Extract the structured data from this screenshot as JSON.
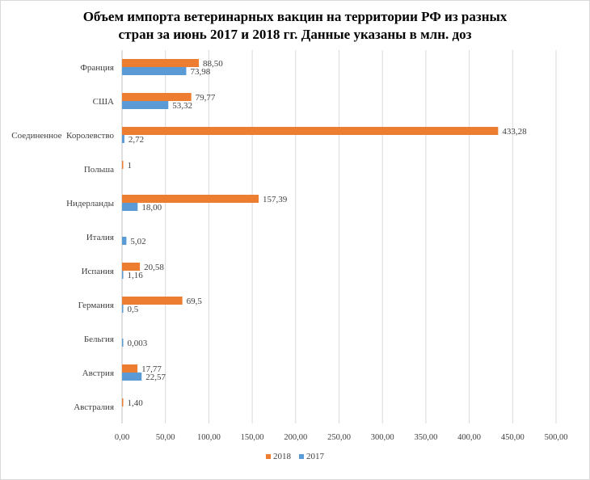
{
  "chart_data": {
    "type": "bar",
    "orientation": "horizontal",
    "title_lines": [
      "Объем импорта ветеринарных вакцин на территории РФ из разных",
      "стран за июнь 2017 и 2018 гг. Данные указаны в млн. доз"
    ],
    "categories": [
      "Франция",
      "США",
      "Соединенное  Королевство",
      "Польша",
      "Нидерланды",
      "Италия",
      "Испания",
      "Германия",
      "Бельгия",
      "Австрия",
      "Австралия"
    ],
    "series": [
      {
        "name": "2018",
        "color": "#ED7D31",
        "values": [
          88.5,
          79.77,
          433.28,
          1,
          157.39,
          null,
          20.58,
          69.5,
          null,
          17.77,
          1.4
        ],
        "labels": [
          "88,50",
          "79,77",
          "433,28",
          "1",
          "157,39",
          "",
          "20,58",
          "69,5",
          "",
          "17,77",
          "1,40"
        ]
      },
      {
        "name": "2017",
        "color": "#5B9BD5",
        "values": [
          73.98,
          53.32,
          2.72,
          null,
          18.0,
          5.02,
          1.16,
          0.5,
          0.003,
          22.57,
          null
        ],
        "labels": [
          "73,98",
          "53,32",
          "2,72",
          "",
          "18,00",
          "5,02",
          "1,16",
          "0,5",
          "0,003",
          "22,57",
          ""
        ]
      }
    ],
    "xlim": [
      0,
      500
    ],
    "xticks": [
      0,
      50,
      100,
      150,
      200,
      250,
      300,
      350,
      400,
      450,
      500
    ],
    "xtick_labels": [
      "0,00",
      "50,00",
      "100,00",
      "150,00",
      "200,00",
      "250,00",
      "300,00",
      "350,00",
      "400,00",
      "450,00",
      "500,00"
    ],
    "grid": "vertical",
    "legend_position": "bottom"
  }
}
